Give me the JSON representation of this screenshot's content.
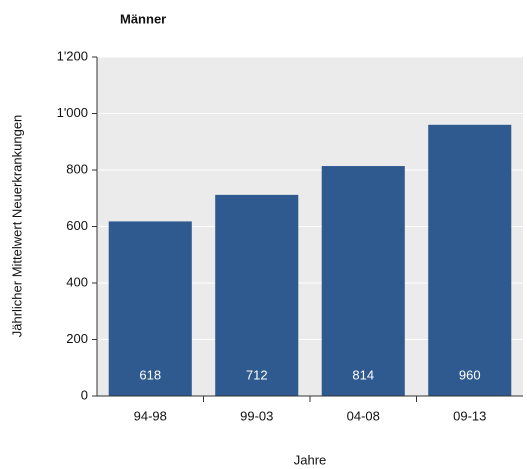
{
  "chart_data": {
    "type": "bar",
    "title": "Männer",
    "xlabel": "Jahre",
    "ylabel": "Jährlicher Mittelwert Neuerkrankungen",
    "categories": [
      "94-98",
      "99-03",
      "04-08",
      "09-13"
    ],
    "values": [
      618,
      712,
      814,
      960
    ],
    "color": "#2e5a8f",
    "ylim": [
      0,
      1200
    ],
    "yticks": [
      0,
      200,
      400,
      600,
      800,
      {
        "value": 1000,
        "label": "1'000"
      },
      {
        "value": 1200,
        "label": "1'200"
      }
    ],
    "grid": true
  }
}
